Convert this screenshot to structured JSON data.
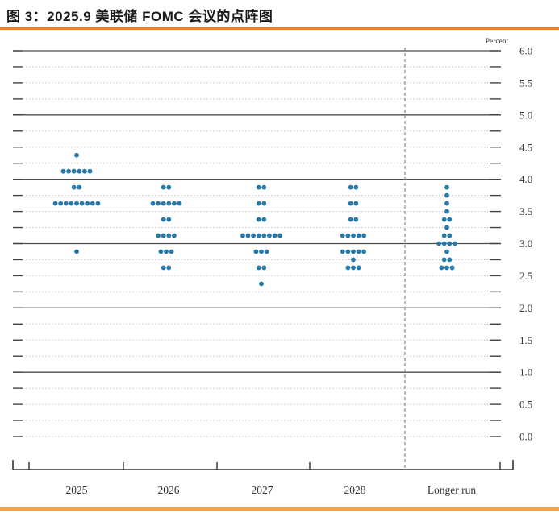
{
  "title": "图 3：2025.9 美联储 FOMC 会议的点阵图",
  "colors": {
    "accent_top_rule": "#e8802e",
    "accent_bottom_rule": "#f2a444",
    "dot": "#2878a8",
    "grid_major": "#4d4d4d",
    "grid_minor": "#c4c4c4",
    "axis": "#333333",
    "tick": "#444444",
    "divider_dashed": "#8a8a8a",
    "label_text": "#333333"
  },
  "chart_data": {
    "type": "scatter",
    "subtype": "fomc-dot-plot",
    "title": "2025.9 FOMC dot plot",
    "ylabel": "Percent",
    "ylim": [
      0.0,
      6.0
    ],
    "ytick_labeled_step": 0.5,
    "ytick_minor_step": 0.25,
    "grid": "on",
    "yticks_labeled": [
      "6.0",
      "5.5",
      "5.0",
      "4.5",
      "4.0",
      "3.5",
      "3.0",
      "2.5",
      "2.0",
      "1.5",
      "1.0",
      "0.5",
      "0.0"
    ],
    "categories": [
      "2025",
      "2026",
      "2027",
      "2028",
      "Longer run"
    ],
    "series": [
      {
        "name": "2025",
        "dots": [
          {
            "rate": 4.375,
            "count": 1
          },
          {
            "rate": 4.125,
            "count": 6
          },
          {
            "rate": 3.875,
            "count": 2
          },
          {
            "rate": 3.625,
            "count": 9
          },
          {
            "rate": 2.875,
            "count": 1
          }
        ]
      },
      {
        "name": "2026",
        "dots": [
          {
            "rate": 3.875,
            "count": 2
          },
          {
            "rate": 3.625,
            "count": 6
          },
          {
            "rate": 3.375,
            "count": 2
          },
          {
            "rate": 3.125,
            "count": 4
          },
          {
            "rate": 2.875,
            "count": 3
          },
          {
            "rate": 2.625,
            "count": 2
          }
        ]
      },
      {
        "name": "2027",
        "dots": [
          {
            "rate": 3.875,
            "count": 2
          },
          {
            "rate": 3.625,
            "count": 2
          },
          {
            "rate": 3.375,
            "count": 2
          },
          {
            "rate": 3.125,
            "count": 8
          },
          {
            "rate": 2.875,
            "count": 3
          },
          {
            "rate": 2.625,
            "count": 2
          },
          {
            "rate": 2.375,
            "count": 1
          }
        ]
      },
      {
        "name": "2028",
        "dots": [
          {
            "rate": 3.875,
            "count": 2
          },
          {
            "rate": 3.625,
            "count": 2
          },
          {
            "rate": 3.375,
            "count": 2
          },
          {
            "rate": 3.125,
            "count": 5
          },
          {
            "rate": 2.875,
            "count": 5
          },
          {
            "rate": 2.75,
            "count": 1
          },
          {
            "rate": 2.625,
            "count": 3
          }
        ]
      },
      {
        "name": "Longer run",
        "dots": [
          {
            "rate": 3.875,
            "count": 1
          },
          {
            "rate": 3.75,
            "count": 1
          },
          {
            "rate": 3.625,
            "count": 1
          },
          {
            "rate": 3.5,
            "count": 1
          },
          {
            "rate": 3.375,
            "count": 2
          },
          {
            "rate": 3.25,
            "count": 1
          },
          {
            "rate": 3.125,
            "count": 2
          },
          {
            "rate": 3.0,
            "count": 4
          },
          {
            "rate": 2.875,
            "count": 1
          },
          {
            "rate": 2.75,
            "count": 2
          },
          {
            "rate": 2.625,
            "count": 3
          }
        ]
      }
    ]
  }
}
